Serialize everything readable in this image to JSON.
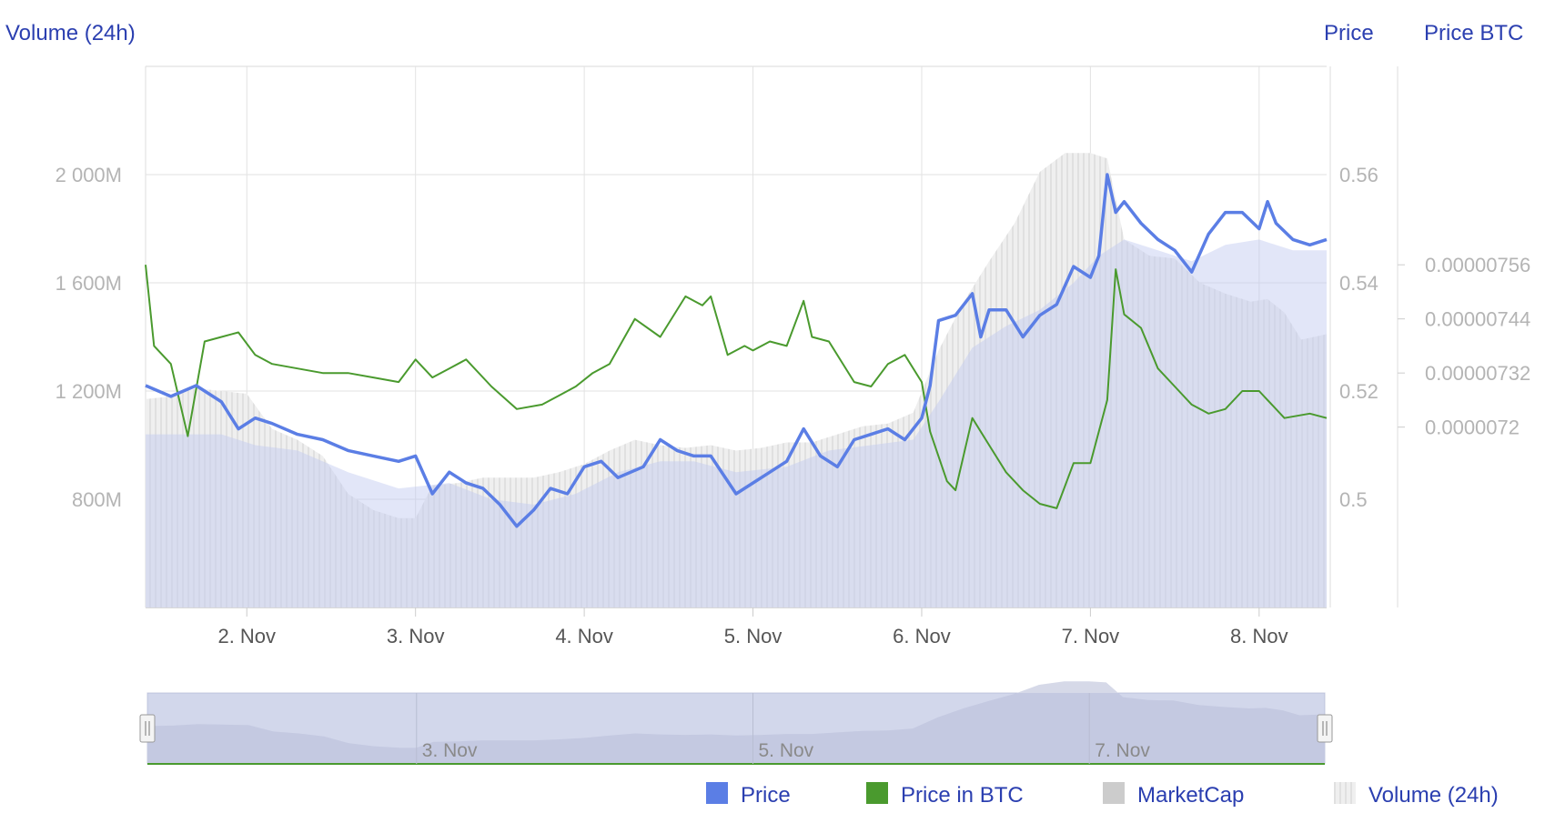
{
  "chart_data": {
    "type": "line",
    "axes": {
      "volume_title": "Volume (24h)",
      "price_title": "Price",
      "btc_title": "Price BTC",
      "volume_ticks": [
        {
          "value": 800,
          "label": "800M"
        },
        {
          "value": 1200,
          "label": "1 200M"
        },
        {
          "value": 1600,
          "label": "1 600M"
        },
        {
          "value": 2000,
          "label": "2 000M"
        }
      ],
      "price_ticks": [
        {
          "value": 0.5,
          "label": "0.5"
        },
        {
          "value": 0.52,
          "label": "0.52"
        },
        {
          "value": 0.54,
          "label": "0.54"
        },
        {
          "value": 0.56,
          "label": "0.56"
        }
      ],
      "btc_ticks": [
        {
          "value": 7.2e-06,
          "label": "0.0000072"
        },
        {
          "value": 7.32e-06,
          "label": "0.00000732"
        },
        {
          "value": 7.44e-06,
          "label": "0.00000744"
        },
        {
          "value": 7.56e-06,
          "label": "0.00000756"
        }
      ],
      "volume_range": [
        400,
        2400
      ],
      "price_range": [
        0.48,
        0.58
      ],
      "btc_range": [
        6.8e-06,
        8e-06
      ],
      "x_range": [
        1.4,
        8.4
      ],
      "x_ticks": [
        {
          "value": 2,
          "label": "2. Nov"
        },
        {
          "value": 3,
          "label": "3. Nov"
        },
        {
          "value": 4,
          "label": "4. Nov"
        },
        {
          "value": 5,
          "label": "5. Nov"
        },
        {
          "value": 6,
          "label": "6. Nov"
        },
        {
          "value": 7,
          "label": "7. Nov"
        },
        {
          "value": 8,
          "label": "8. Nov"
        }
      ],
      "grid": true
    },
    "navigator": {
      "x_ticks": [
        {
          "value": 3,
          "label": "3. Nov"
        },
        {
          "value": 5,
          "label": "5. Nov"
        },
        {
          "value": 7,
          "label": "7. Nov"
        }
      ]
    },
    "legend": {
      "placement": "bottom-right",
      "items": [
        {
          "label": "Price",
          "color": "#5b7ee5"
        },
        {
          "label": "Price in BTC",
          "color": "#4a9a2e"
        },
        {
          "label": "MarketCap",
          "color": "#cccccc"
        },
        {
          "label": "Volume (24h)",
          "color": "#e4e4e4"
        }
      ]
    },
    "series": [
      {
        "name": "Price",
        "axis": "price",
        "color": "#5b7ee5",
        "x": [
          1.4,
          1.55,
          1.7,
          1.85,
          1.95,
          2.05,
          2.15,
          2.3,
          2.45,
          2.6,
          2.75,
          2.9,
          3.0,
          3.1,
          3.2,
          3.3,
          3.4,
          3.5,
          3.6,
          3.7,
          3.8,
          3.9,
          4.0,
          4.1,
          4.2,
          4.35,
          4.45,
          4.55,
          4.65,
          4.75,
          4.9,
          5.0,
          5.1,
          5.2,
          5.3,
          5.4,
          5.5,
          5.6,
          5.7,
          5.8,
          5.9,
          6.0,
          6.05,
          6.1,
          6.2,
          6.3,
          6.35,
          6.4,
          6.5,
          6.6,
          6.7,
          6.8,
          6.9,
          7.0,
          7.05,
          7.1,
          7.15,
          7.2,
          7.3,
          7.4,
          7.5,
          7.6,
          7.7,
          7.8,
          7.9,
          8.0,
          8.05,
          8.1,
          8.2,
          8.3,
          8.4
        ],
        "values": [
          0.521,
          0.519,
          0.521,
          0.518,
          0.513,
          0.515,
          0.514,
          0.512,
          0.511,
          0.509,
          0.508,
          0.507,
          0.508,
          0.501,
          0.505,
          0.503,
          0.502,
          0.499,
          0.495,
          0.498,
          0.502,
          0.501,
          0.506,
          0.507,
          0.504,
          0.506,
          0.511,
          0.509,
          0.508,
          0.508,
          0.501,
          0.503,
          0.505,
          0.507,
          0.513,
          0.508,
          0.506,
          0.511,
          0.512,
          0.513,
          0.511,
          0.515,
          0.521,
          0.533,
          0.534,
          0.538,
          0.53,
          0.535,
          0.535,
          0.53,
          0.534,
          0.536,
          0.543,
          0.541,
          0.545,
          0.56,
          0.553,
          0.555,
          0.551,
          0.548,
          0.546,
          0.542,
          0.549,
          0.553,
          0.553,
          0.55,
          0.555,
          0.551,
          0.548,
          0.547,
          0.548
        ]
      },
      {
        "name": "Price in BTC",
        "axis": "btc",
        "color": "#4a9a2e",
        "x": [
          1.4,
          1.45,
          1.55,
          1.65,
          1.75,
          1.85,
          1.95,
          2.05,
          2.15,
          2.3,
          2.45,
          2.6,
          2.75,
          2.9,
          3.0,
          3.1,
          3.2,
          3.3,
          3.45,
          3.6,
          3.75,
          3.85,
          3.95,
          4.05,
          4.15,
          4.3,
          4.45,
          4.6,
          4.7,
          4.75,
          4.85,
          4.95,
          5.0,
          5.1,
          5.2,
          5.3,
          5.35,
          5.45,
          5.6,
          5.7,
          5.8,
          5.9,
          6.0,
          6.05,
          6.15,
          6.2,
          6.3,
          6.4,
          6.5,
          6.6,
          6.7,
          6.8,
          6.9,
          7.0,
          7.1,
          7.15,
          7.2,
          7.3,
          7.4,
          7.5,
          7.6,
          7.7,
          7.8,
          7.9,
          8.0,
          8.05,
          8.15,
          8.3,
          8.4
        ],
        "values": [
          7.56e-06,
          7.38e-06,
          7.34e-06,
          7.18e-06,
          7.39e-06,
          7.4e-06,
          7.41e-06,
          7.36e-06,
          7.34e-06,
          7.33e-06,
          7.32e-06,
          7.32e-06,
          7.31e-06,
          7.3e-06,
          7.35e-06,
          7.31e-06,
          7.33e-06,
          7.35e-06,
          7.29e-06,
          7.24e-06,
          7.25e-06,
          7.27e-06,
          7.29e-06,
          7.32e-06,
          7.34e-06,
          7.44e-06,
          7.4e-06,
          7.49e-06,
          7.47e-06,
          7.49e-06,
          7.36e-06,
          7.38e-06,
          7.37e-06,
          7.39e-06,
          7.38e-06,
          7.48e-06,
          7.4e-06,
          7.39e-06,
          7.3e-06,
          7.29e-06,
          7.34e-06,
          7.36e-06,
          7.3e-06,
          7.19e-06,
          7.08e-06,
          7.06e-06,
          7.22e-06,
          7.16e-06,
          7.1e-06,
          7.06e-06,
          7.03e-06,
          7.02e-06,
          7.12e-06,
          7.12e-06,
          7.26e-06,
          7.55e-06,
          7.45e-06,
          7.42e-06,
          7.33e-06,
          7.29e-06,
          7.25e-06,
          7.23e-06,
          7.24e-06,
          7.28e-06,
          7.28e-06,
          7.26e-06,
          7.22e-06,
          7.23e-06,
          7.22e-06
        ]
      },
      {
        "name": "MarketCap",
        "axis": "none",
        "color": "#cccccc",
        "x": [
          1.4,
          1.85,
          2.05,
          2.3,
          2.6,
          2.9,
          3.2,
          3.45,
          3.7,
          3.95,
          4.2,
          4.45,
          4.65,
          4.9,
          5.2,
          5.45,
          5.7,
          5.95,
          6.1,
          6.3,
          6.5,
          6.7,
          6.9,
          7.05,
          7.2,
          7.4,
          7.6,
          7.8,
          8.0,
          8.2,
          8.4
        ],
        "values": [
          0.512,
          0.512,
          0.51,
          0.509,
          0.505,
          0.502,
          0.503,
          0.5,
          0.499,
          0.501,
          0.505,
          0.507,
          0.507,
          0.505,
          0.506,
          0.509,
          0.51,
          0.511,
          0.518,
          0.528,
          0.532,
          0.535,
          0.54,
          0.545,
          0.548,
          0.546,
          0.544,
          0.547,
          0.548,
          0.546,
          0.546
        ]
      },
      {
        "name": "Volume (24h)",
        "axis": "volume",
        "color": "#e4e4e4",
        "x": [
          1.4,
          1.55,
          1.7,
          1.85,
          2.0,
          2.15,
          2.3,
          2.45,
          2.6,
          2.75,
          2.9,
          3.0,
          3.1,
          3.25,
          3.4,
          3.55,
          3.7,
          3.85,
          4.0,
          4.15,
          4.3,
          4.45,
          4.6,
          4.75,
          4.9,
          5.05,
          5.2,
          5.35,
          5.5,
          5.65,
          5.8,
          5.95,
          6.1,
          6.25,
          6.4,
          6.55,
          6.7,
          6.85,
          7.0,
          7.1,
          7.2,
          7.35,
          7.5,
          7.65,
          7.8,
          7.95,
          8.05,
          8.15,
          8.25,
          8.4
        ],
        "values": [
          1170,
          1180,
          1210,
          1200,
          1190,
          1060,
          1020,
          960,
          820,
          760,
          730,
          730,
          850,
          860,
          880,
          880,
          880,
          900,
          930,
          980,
          1020,
          1000,
          990,
          1000,
          980,
          990,
          1010,
          1010,
          1040,
          1070,
          1080,
          1120,
          1350,
          1530,
          1680,
          1820,
          2010,
          2080,
          2080,
          2060,
          1760,
          1700,
          1690,
          1600,
          1560,
          1530,
          1540,
          1490,
          1390,
          1410
        ]
      }
    ]
  }
}
